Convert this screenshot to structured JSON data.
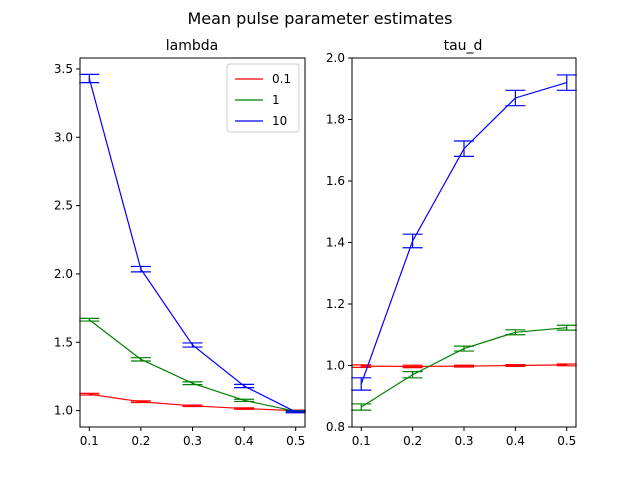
{
  "suptitle": "Mean pulse parameter estimates",
  "chart_data": [
    {
      "type": "line",
      "title": "lambda",
      "xlabel": "",
      "ylabel": "",
      "x": [
        0.1,
        0.2,
        0.3,
        0.4,
        0.5
      ],
      "xlim": [
        0.082,
        0.518
      ],
      "ylim": [
        0.88,
        3.58
      ],
      "xticks": [
        "0.1",
        "0.2",
        "0.3",
        "0.4",
        "0.5"
      ],
      "yticks": [
        "1.0",
        "1.5",
        "2.0",
        "2.5",
        "3.0",
        "3.5"
      ],
      "grid": false,
      "legend": {
        "placement": "top-right",
        "entries": [
          "0.1",
          "1",
          "10"
        ]
      },
      "series": [
        {
          "name": "0.1",
          "color": "#ff0000",
          "values": [
            1.12,
            1.065,
            1.035,
            1.015,
            1.0
          ],
          "err": [
            0.006,
            0.006,
            0.005,
            0.005,
            0.004
          ]
        },
        {
          "name": "1",
          "color": "#008000",
          "values": [
            1.665,
            1.375,
            1.2,
            1.075,
            0.995
          ],
          "err": [
            0.01,
            0.012,
            0.01,
            0.008,
            0.005
          ]
        },
        {
          "name": "10",
          "color": "#0000ff",
          "values": [
            3.43,
            2.035,
            1.48,
            1.18,
            0.99
          ],
          "err": [
            0.03,
            0.02,
            0.015,
            0.012,
            0.006
          ]
        }
      ]
    },
    {
      "type": "line",
      "title": "tau_d",
      "xlabel": "",
      "ylabel": "",
      "x": [
        0.1,
        0.2,
        0.3,
        0.4,
        0.5
      ],
      "xlim": [
        0.082,
        0.518
      ],
      "ylim": [
        0.8,
        2.0
      ],
      "xticks": [
        "0.1",
        "0.2",
        "0.3",
        "0.4",
        "0.5"
      ],
      "yticks": [
        "0.8",
        "1.0",
        "1.2",
        "1.4",
        "1.6",
        "1.8",
        "2.0"
      ],
      "grid": false,
      "series": [
        {
          "name": "0.1",
          "color": "#ff0000",
          "values": [
            0.998,
            0.997,
            0.998,
            1.0,
            1.002
          ],
          "err": [
            0.004,
            0.004,
            0.003,
            0.003,
            0.003
          ]
        },
        {
          "name": "1",
          "color": "#008000",
          "values": [
            0.865,
            0.97,
            1.055,
            1.108,
            1.123
          ],
          "err": [
            0.01,
            0.01,
            0.008,
            0.008,
            0.008
          ]
        },
        {
          "name": "10",
          "color": "#0000ff",
          "values": [
            0.94,
            1.405,
            1.705,
            1.87,
            1.92
          ],
          "err": [
            0.02,
            0.022,
            0.025,
            0.025,
            0.025
          ]
        }
      ]
    }
  ]
}
